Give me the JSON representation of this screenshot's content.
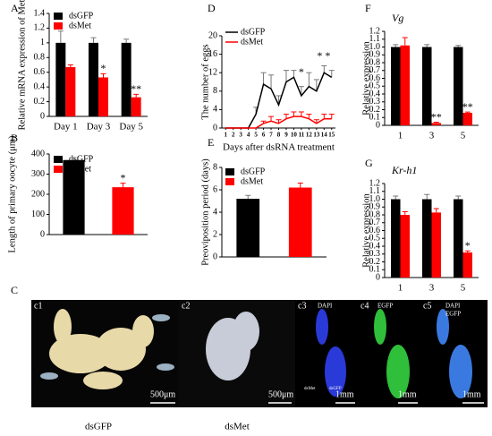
{
  "panels": [
    "A",
    "B",
    "C",
    "D",
    "E",
    "F",
    "G"
  ],
  "chart_data": [
    {
      "type": "bar",
      "ylabel": "Relative mRNA expression of Met",
      "categories": [
        "Day 1",
        "Day 3",
        "Day 5"
      ],
      "series": [
        {
          "name": "dsGFP",
          "color": "#000000",
          "values": [
            1.0,
            1.0,
            1.0
          ],
          "errors": [
            0.16,
            0.07,
            0.05
          ]
        },
        {
          "name": "dsMet",
          "color": "#ff0000",
          "values": [
            0.67,
            0.53,
            0.26
          ],
          "errors": [
            0.03,
            0.05,
            0.04
          ]
        }
      ],
      "ylim": [
        0,
        1.4
      ],
      "yticks": [
        0,
        0.2,
        0.4,
        0.6,
        0.8,
        1,
        1.2,
        1.4
      ],
      "annotations": [
        "*",
        "**"
      ]
    },
    {
      "type": "bar",
      "ylabel": "Length of primary oocyte (μm)",
      "series": [
        {
          "name": "dsGFP",
          "color": "#000000",
          "values": [
            370
          ],
          "errors": [
            12
          ]
        },
        {
          "name": "dsMet",
          "color": "#ff0000",
          "values": [
            235
          ],
          "errors": [
            20
          ]
        }
      ],
      "ylim": [
        0,
        400
      ],
      "yticks": [
        0,
        100,
        200,
        300,
        400
      ],
      "annotations": [
        "*"
      ]
    },
    {
      "type": "line",
      "ylabel": "The number of eggs",
      "xlabel": "Days after dsRNA treatment",
      "x": [
        1,
        2,
        3,
        4,
        5,
        6,
        7,
        8,
        9,
        10,
        11,
        12,
        13,
        14,
        15
      ],
      "series": [
        {
          "name": "dsGFP",
          "color": "#000000",
          "values": [
            0,
            0,
            0,
            0,
            3,
            9.5,
            8.5,
            5,
            10,
            11,
            7,
            9,
            8,
            12,
            11
          ],
          "errors": [
            0,
            0,
            0,
            0,
            1.5,
            2.5,
            3,
            2,
            2.5,
            1.5,
            2,
            3,
            2.5,
            1.5,
            1.5
          ]
        },
        {
          "name": "dsMet",
          "color": "#ff0000",
          "values": [
            0,
            0,
            0,
            0,
            0,
            1,
            1.5,
            1,
            2,
            2.5,
            2.5,
            2,
            1,
            2,
            2
          ],
          "errors": [
            0,
            0,
            0,
            0,
            0,
            0.5,
            1,
            0.8,
            1,
            1,
            1,
            1,
            0.8,
            1,
            1
          ]
        }
      ],
      "xlim": [
        0.5,
        15.5
      ],
      "xticks": [
        1,
        2,
        3,
        4,
        5,
        6,
        7,
        8,
        9,
        10,
        11,
        12,
        13,
        14,
        15
      ],
      "ylim": [
        0,
        20
      ],
      "yticks": [
        0,
        4,
        8,
        12,
        16,
        20
      ],
      "annotations": [
        "*",
        "* *"
      ]
    },
    {
      "type": "bar",
      "ylabel": "Preoviposition period (days)",
      "series": [
        {
          "name": "dsGFP",
          "color": "#000000",
          "values": [
            5.2
          ],
          "errors": [
            0.3
          ]
        },
        {
          "name": "dsMet",
          "color": "#ff0000",
          "values": [
            6.2
          ],
          "errors": [
            0.4
          ]
        }
      ],
      "ylim": [
        0,
        8
      ],
      "yticks": [
        0,
        2,
        4,
        6,
        8
      ],
      "annotations": []
    },
    {
      "type": "bar",
      "title": "Vg",
      "ylabel": "Relative expression",
      "categories": [
        "1",
        "3",
        "5"
      ],
      "series": [
        {
          "name": "dsGFP",
          "color": "#000000",
          "values": [
            1.0,
            1.0,
            1.0
          ],
          "errors": [
            0.03,
            0.03,
            0.02
          ]
        },
        {
          "name": "dsMet",
          "color": "#ff0000",
          "values": [
            1.02,
            0.03,
            0.16
          ],
          "errors": [
            0.1,
            0.01,
            0.01
          ]
        }
      ],
      "ylim": [
        0,
        1.2
      ],
      "yticks": [
        0,
        0.1,
        0.2,
        0.3,
        0.4,
        0.5,
        0.6,
        0.7,
        0.8,
        0.9,
        {
          "value": 1,
          "label": "1.0"
        },
        1.1,
        1.2
      ],
      "annotations": [
        "**",
        "**"
      ]
    },
    {
      "type": "bar",
      "title": "Kr-h1",
      "ylabel": "Relative expression",
      "categories": [
        "1",
        "3",
        "5"
      ],
      "series": [
        {
          "name": "dsGFP",
          "color": "#000000",
          "values": [
            1.0,
            1.0,
            1.0
          ],
          "errors": [
            0.04,
            0.06,
            0.04
          ]
        },
        {
          "name": "dsMet",
          "color": "#ff0000",
          "values": [
            0.8,
            0.83,
            0.32
          ],
          "errors": [
            0.04,
            0.05,
            0.02
          ]
        }
      ],
      "ylim": [
        0,
        1.2
      ],
      "yticks": [
        0,
        0.1,
        0.2,
        0.3,
        0.4,
        0.5,
        0.6,
        0.7,
        0.8,
        0.9,
        {
          "value": 1,
          "label": "1.0"
        },
        1.1,
        1.2
      ],
      "annotations": [
        "*"
      ]
    }
  ],
  "images": {
    "labels": [
      "c1",
      "c2",
      "c3",
      "c4",
      "c5"
    ],
    "scale_small": "500μm",
    "scale_large": "1mm",
    "captions": [
      "dsGFP",
      "dsMet"
    ],
    "stains": [
      "DAPI",
      "EGFP"
    ],
    "inset": [
      "dsMet",
      "dsGFP"
    ]
  }
}
